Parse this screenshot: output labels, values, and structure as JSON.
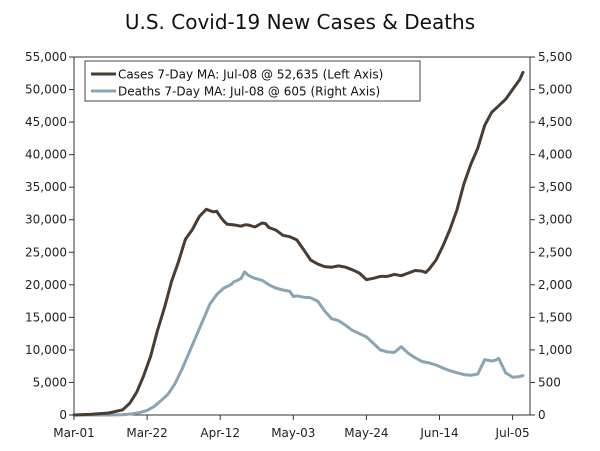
{
  "chart_data": {
    "type": "line",
    "title": "U.S. Covid-19 New Cases & Deaths",
    "x_tick_labels": [
      "Mar-01",
      "Mar-22",
      "Apr-12",
      "May-03",
      "May-24",
      "Jun-14",
      "Jul-05"
    ],
    "x_tick_days": [
      0,
      21,
      42,
      63,
      84,
      105,
      126
    ],
    "x_range": [
      0,
      131
    ],
    "left_axis": {
      "label": "Left Axis",
      "ylim": [
        0,
        55000
      ],
      "ticks": [
        0,
        5000,
        10000,
        15000,
        20000,
        25000,
        30000,
        35000,
        40000,
        45000,
        50000,
        55000
      ],
      "tick_labels": [
        "0",
        "5,000",
        "10,000",
        "15,000",
        "20,000",
        "25,000",
        "30,000",
        "35,000",
        "40,000",
        "45,000",
        "50,000",
        "55,000"
      ]
    },
    "right_axis": {
      "label": "Right Axis",
      "ylim": [
        0,
        5500
      ],
      "ticks": [
        0,
        500,
        1000,
        1500,
        2000,
        2500,
        3000,
        3500,
        4000,
        4500,
        5000,
        5500
      ],
      "tick_labels": [
        "0",
        "500",
        "1,000",
        "1,500",
        "2,000",
        "2,500",
        "3,000",
        "3,500",
        "4,000",
        "4,500",
        "5,000",
        "5,500"
      ]
    },
    "legend": {
      "placement": "top-left"
    },
    "series": [
      {
        "name": "Cases 7-Day MA: Jul-08 @ 52,635 (Left Axis)",
        "axis": "left",
        "color": "#4a3c31",
        "x": [
          0,
          5,
          10,
          14,
          16,
          18,
          20,
          22,
          24,
          26,
          28,
          30,
          32,
          34,
          36,
          38,
          40,
          41,
          42,
          43,
          44,
          46,
          48,
          49,
          50,
          52,
          54,
          55,
          56,
          58,
          60,
          62,
          64,
          66,
          68,
          70,
          72,
          74,
          76,
          78,
          80,
          82,
          84,
          86,
          88,
          90,
          92,
          94,
          96,
          98,
          100,
          101,
          102,
          104,
          106,
          108,
          110,
          112,
          114,
          116,
          118,
          120,
          122,
          124,
          126,
          128,
          129
        ],
        "values": [
          0,
          100,
          300,
          800,
          1800,
          3500,
          6000,
          9000,
          13000,
          16500,
          20500,
          23500,
          27000,
          28500,
          30500,
          31600,
          31200,
          31300,
          30500,
          29800,
          29300,
          29200,
          29000,
          29200,
          29200,
          28900,
          29500,
          29400,
          28800,
          28400,
          27600,
          27400,
          26900,
          25400,
          23800,
          23200,
          22800,
          22700,
          22900,
          22700,
          22300,
          21800,
          20800,
          21000,
          21300,
          21300,
          21600,
          21400,
          21800,
          22200,
          22100,
          21900,
          22400,
          23800,
          26000,
          28500,
          31500,
          35500,
          38500,
          41000,
          44500,
          46500,
          47500,
          48500,
          50000,
          51500,
          52635
        ]
      },
      {
        "name": "Deaths 7-Day MA: Jul-08 @ 605 (Right Axis)",
        "axis": "right",
        "color": "#8aa4b5",
        "x": [
          0,
          10,
          14,
          17,
          19,
          21,
          23,
          25,
          27,
          29,
          31,
          33,
          35,
          37,
          39,
          41,
          43,
          45,
          46,
          47,
          48,
          49,
          50,
          51,
          52,
          54,
          56,
          58,
          60,
          62,
          63,
          64,
          66,
          68,
          70,
          72,
          74,
          76,
          78,
          80,
          82,
          84,
          86,
          88,
          90,
          92,
          94,
          96,
          98,
          100,
          102,
          104,
          106,
          108,
          110,
          112,
          114,
          115,
          116,
          118,
          120,
          121,
          122,
          124,
          126,
          128,
          129
        ],
        "values": [
          0,
          0,
          5,
          20,
          40,
          70,
          130,
          220,
          320,
          480,
          700,
          950,
          1200,
          1450,
          1700,
          1850,
          1950,
          2000,
          2050,
          2070,
          2100,
          2200,
          2150,
          2120,
          2100,
          2070,
          2000,
          1950,
          1920,
          1900,
          1820,
          1830,
          1810,
          1800,
          1750,
          1600,
          1480,
          1450,
          1380,
          1300,
          1250,
          1200,
          1100,
          1000,
          970,
          960,
          1050,
          950,
          880,
          820,
          800,
          770,
          720,
          680,
          650,
          620,
          610,
          620,
          630,
          850,
          830,
          840,
          870,
          650,
          580,
          590,
          605
        ]
      }
    ]
  }
}
